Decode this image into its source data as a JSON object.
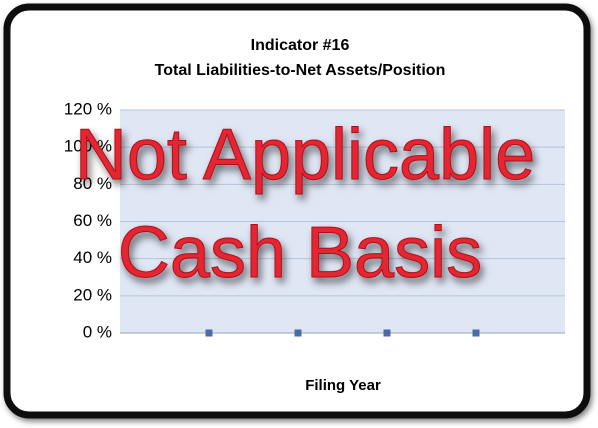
{
  "chart_data": {
    "type": "line",
    "title": "Indicator #16",
    "subtitle": "Total Liabilities-to-Net Assets/Position",
    "x_label": "Filing Year",
    "annotations": [
      "Not Applicable",
      "Cash Basis"
    ],
    "categories": [
      null,
      null,
      null,
      null
    ],
    "series": [
      {
        "name": null,
        "color": "#4a6aa8",
        "values": [
          0,
          0,
          0,
          0
        ]
      }
    ],
    "ylim": [
      0,
      120
    ],
    "yticks": [
      {
        "value": 0,
        "label": "0 %"
      },
      {
        "value": 20,
        "label": "20 %"
      },
      {
        "value": 40,
        "label": "40 %"
      },
      {
        "value": 60,
        "label": "60 %"
      },
      {
        "value": 80,
        "label": "80 %"
      },
      {
        "value": 100,
        "label": "100 %"
      },
      {
        "value": 120,
        "label": "120 %"
      }
    ],
    "grid": true
  }
}
